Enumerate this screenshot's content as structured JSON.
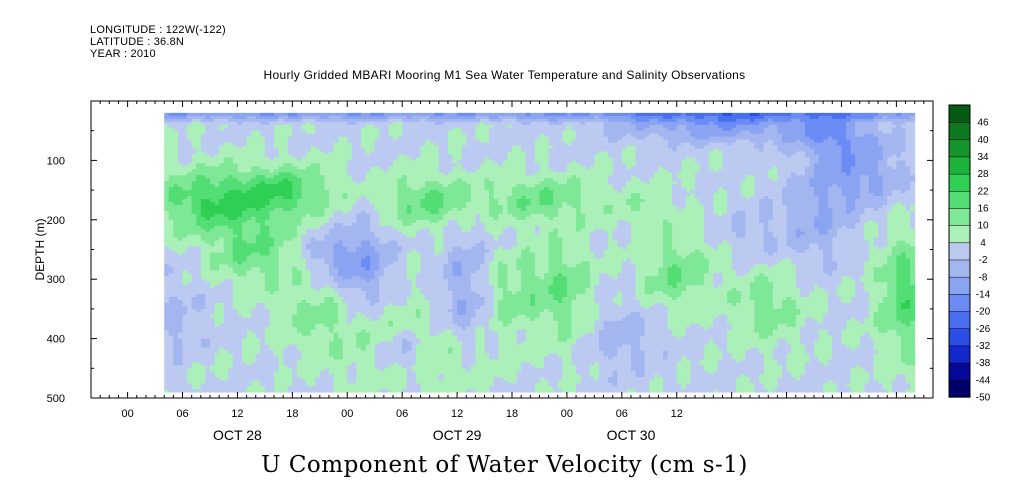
{
  "header": {
    "longitude": "LONGITUDE : 122W(-122)",
    "latitude": "LATITUDE : 36.8N",
    "year": "YEAR : 2010"
  },
  "title": "Hourly Gridded MBARI Mooring M1 Sea Water Temperature and Salinity Observations",
  "bottom_title": "U Component of Water Velocity (cm s-1)",
  "chart_data": {
    "type": "heatmap",
    "title": "Hourly Gridded MBARI Mooring M1 Sea Water Temperature and Salinity Observations",
    "variable": "U Component of Water Velocity (cm s-1)",
    "xlabel": "",
    "ylabel": "DEPTH (m)",
    "xlim_hours": [
      -4,
      88
    ],
    "x_tick_labels": [
      "00",
      "06",
      "12",
      "18",
      "00",
      "06",
      "12",
      "18",
      "00",
      "06",
      "12"
    ],
    "x_tick_hours": [
      0,
      6,
      12,
      18,
      24,
      30,
      36,
      42,
      48,
      54,
      60
    ],
    "date_labels": [
      {
        "label": "OCT 28",
        "hour": 12
      },
      {
        "label": "OCT 29",
        "hour": 36
      },
      {
        "label": "OCT 30",
        "hour": 55
      }
    ],
    "ylim": [
      500,
      0
    ],
    "y_ticks": [
      100,
      200,
      300,
      400,
      500
    ],
    "data_extent": {
      "hour_start": 4,
      "hour_end": 86,
      "depth_top": 20,
      "depth_bottom": 490
    },
    "colorbar": {
      "levels": [
        -50,
        -44,
        -38,
        -32,
        -26,
        -20,
        -14,
        -8,
        -2,
        4,
        10,
        16,
        22,
        28,
        34,
        40,
        46
      ],
      "tick_labels": [
        "46",
        "40",
        "34",
        "28",
        "22",
        "16",
        "10",
        "4",
        "-2",
        "-8",
        "-14",
        "-20",
        "-26",
        "-32",
        "-38",
        "-44",
        "-50"
      ],
      "colors": [
        "#00006a",
        "#06089a",
        "#1328cc",
        "#2a4ee6",
        "#4a6ef0",
        "#6a8cf4",
        "#8aa4f2",
        "#a4b6f0",
        "#bccaf2",
        "#aaf0b8",
        "#7ee896",
        "#52de74",
        "#2ecf52",
        "#1db43c",
        "#14962c",
        "#0c7820",
        "#055a14"
      ]
    },
    "grid": false,
    "legend": "right"
  }
}
